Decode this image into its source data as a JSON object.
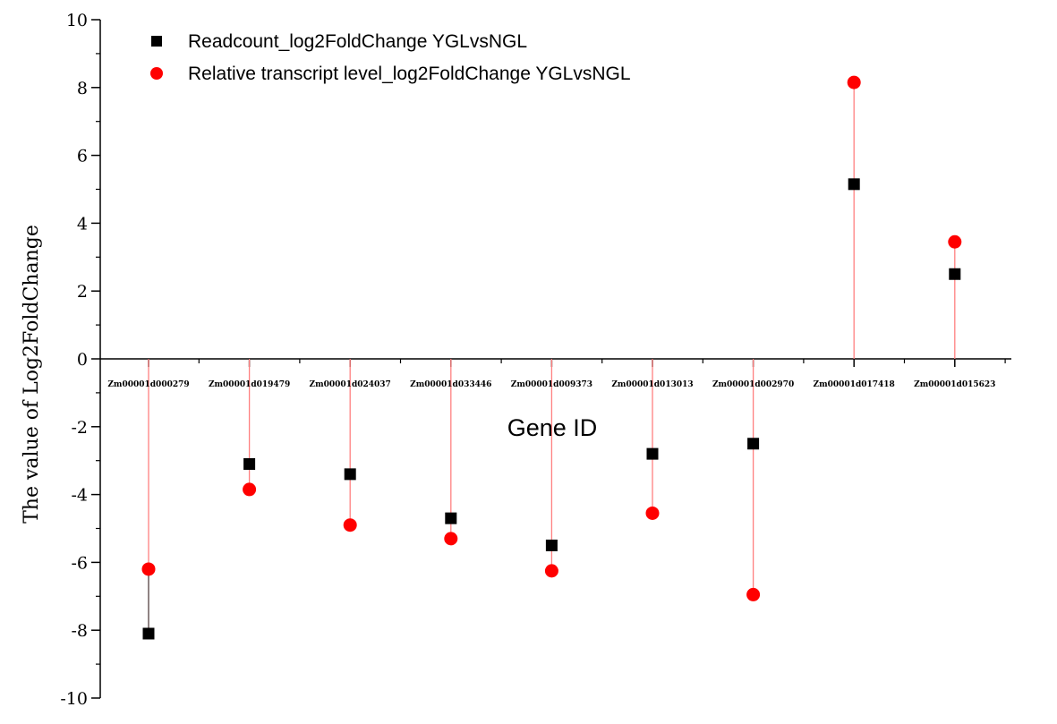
{
  "chart_data": {
    "type": "scatter",
    "title": "",
    "xlabel": "Gene ID",
    "ylabel": "The value of Log2FoldChange",
    "ylim": [
      -10,
      10
    ],
    "yticks": [
      10,
      8,
      6,
      4,
      2,
      0,
      -2,
      -4,
      -6,
      -8,
      -10
    ],
    "grid": false,
    "legend_position": "top-left",
    "categories": [
      "Zm00001d000279",
      "Zm00001d019479",
      "Zm00001d024037",
      "Zm00001d033446",
      "Zm00001d009373",
      "Zm00001d013013",
      "Zm00001d002970",
      "Zm00001d017418",
      "Zm00001d015623"
    ],
    "series": [
      {
        "name": "Readcount_log2FoldChange YGLvsNGL",
        "marker": "square",
        "color": "#000000",
        "values": [
          -8.1,
          -3.1,
          -3.4,
          -4.7,
          -5.5,
          -2.8,
          -2.5,
          5.15,
          2.5
        ]
      },
      {
        "name": "Relative transcript level_log2FoldChange  YGLvsNGL",
        "marker": "circle",
        "color": "#ff0000",
        "values": [
          -6.2,
          -3.85,
          -4.9,
          -5.3,
          -6.25,
          -4.55,
          -6.95,
          8.15,
          3.45
        ]
      }
    ],
    "stem_color": "#ff8080"
  }
}
